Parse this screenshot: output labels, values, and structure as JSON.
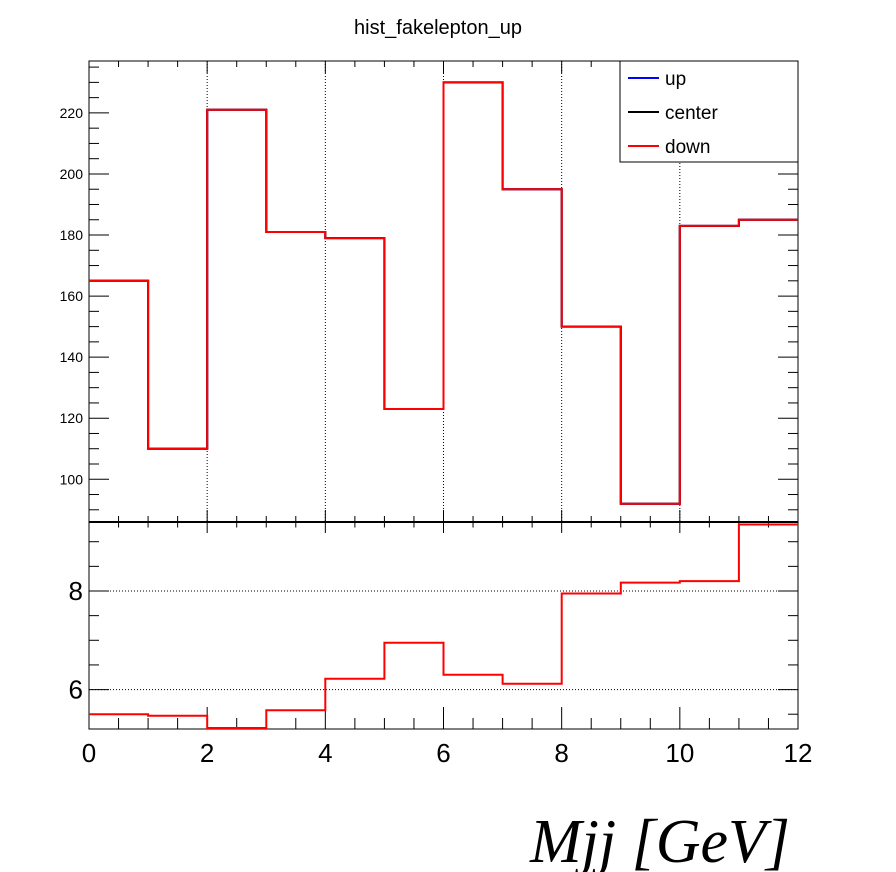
{
  "chart_data": [
    {
      "panel": "main",
      "type": "histogram-step",
      "title": "hist_fakelepton_up",
      "xlim": [
        0,
        12
      ],
      "ylim": [
        86,
        237
      ],
      "yticks": [
        100,
        120,
        140,
        160,
        180,
        200,
        220
      ],
      "xgrid_at": [
        2,
        4,
        6,
        8,
        10
      ],
      "bin_edges": [
        0,
        1,
        2,
        3,
        4,
        5,
        6,
        7,
        8,
        9,
        10,
        11,
        12
      ],
      "series": [
        {
          "name": "up",
          "color": "#0000ff",
          "values": [
            165,
            110,
            221,
            181,
            179,
            123,
            230,
            195,
            150,
            92,
            183,
            185
          ]
        },
        {
          "name": "center",
          "color": "#000000",
          "values": [
            165,
            110,
            221,
            181,
            179,
            123,
            230,
            195,
            150,
            92,
            183,
            185
          ]
        },
        {
          "name": "down",
          "color": "#ff0000",
          "values": [
            165,
            110,
            221,
            181,
            179,
            123,
            230,
            195,
            150,
            92,
            183,
            185
          ]
        }
      ],
      "legend": {
        "position": "top-right",
        "entries": [
          "up",
          "center",
          "down"
        ]
      }
    },
    {
      "panel": "ratio",
      "type": "histogram-step",
      "xlim": [
        0,
        12
      ],
      "ylim": [
        5.2,
        9.4
      ],
      "yticks": [
        6,
        8
      ],
      "ygrid_at": [
        6,
        8
      ],
      "xticks": [
        0,
        2,
        4,
        6,
        8,
        10,
        12
      ],
      "xlabel": "Mjj [GeV]",
      "bin_edges": [
        0,
        1,
        2,
        3,
        4,
        5,
        6,
        7,
        8,
        9,
        10,
        11,
        12
      ],
      "series": [
        {
          "name": "down",
          "color": "#ff0000",
          "values": [
            5.5,
            5.47,
            5.22,
            5.58,
            6.22,
            6.95,
            6.3,
            6.12,
            7.95,
            8.17,
            8.2,
            9.35
          ]
        }
      ]
    }
  ]
}
